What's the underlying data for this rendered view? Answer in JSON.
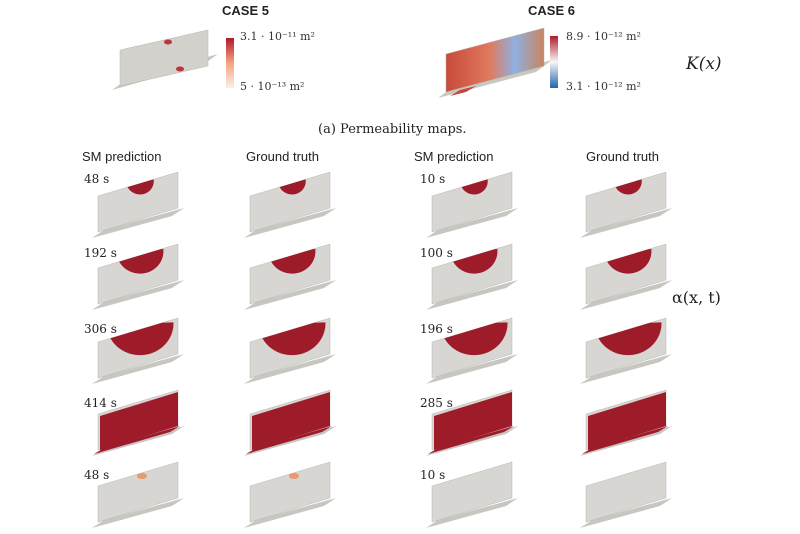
{
  "permeability": {
    "case5": {
      "title": "CASE 5",
      "cb_max": "3.1 · 10⁻¹¹ m²",
      "cb_min": "5 · 10⁻¹³ m²"
    },
    "case6": {
      "title": "CASE 6",
      "cb_max": "8.9 · 10⁻¹² m²",
      "cb_min": "3.1 · 10⁻¹² m²"
    },
    "k_label": "K(x)",
    "caption": "(a) Permeability maps."
  },
  "grid": {
    "column_headers": [
      "SM prediction",
      "Ground truth",
      "SM prediction",
      "Ground truth"
    ],
    "alpha_label": "α(x, t)",
    "case5_times": [
      "48 s",
      "192 s",
      "306 s",
      "414 s",
      "48 s"
    ],
    "case6_times": [
      "10 s",
      "100 s",
      "196 s",
      "285 s",
      "10 s"
    ],
    "fill_levels": [
      0.15,
      0.45,
      0.75,
      1.0,
      0.05
    ]
  },
  "colors": {
    "saturated": "#9e1b2a",
    "dry": "#d8d6d2",
    "flange": "#c8c6c0",
    "cb_high_red": "#b2182b",
    "cb_low_blue": "#2166ac"
  }
}
